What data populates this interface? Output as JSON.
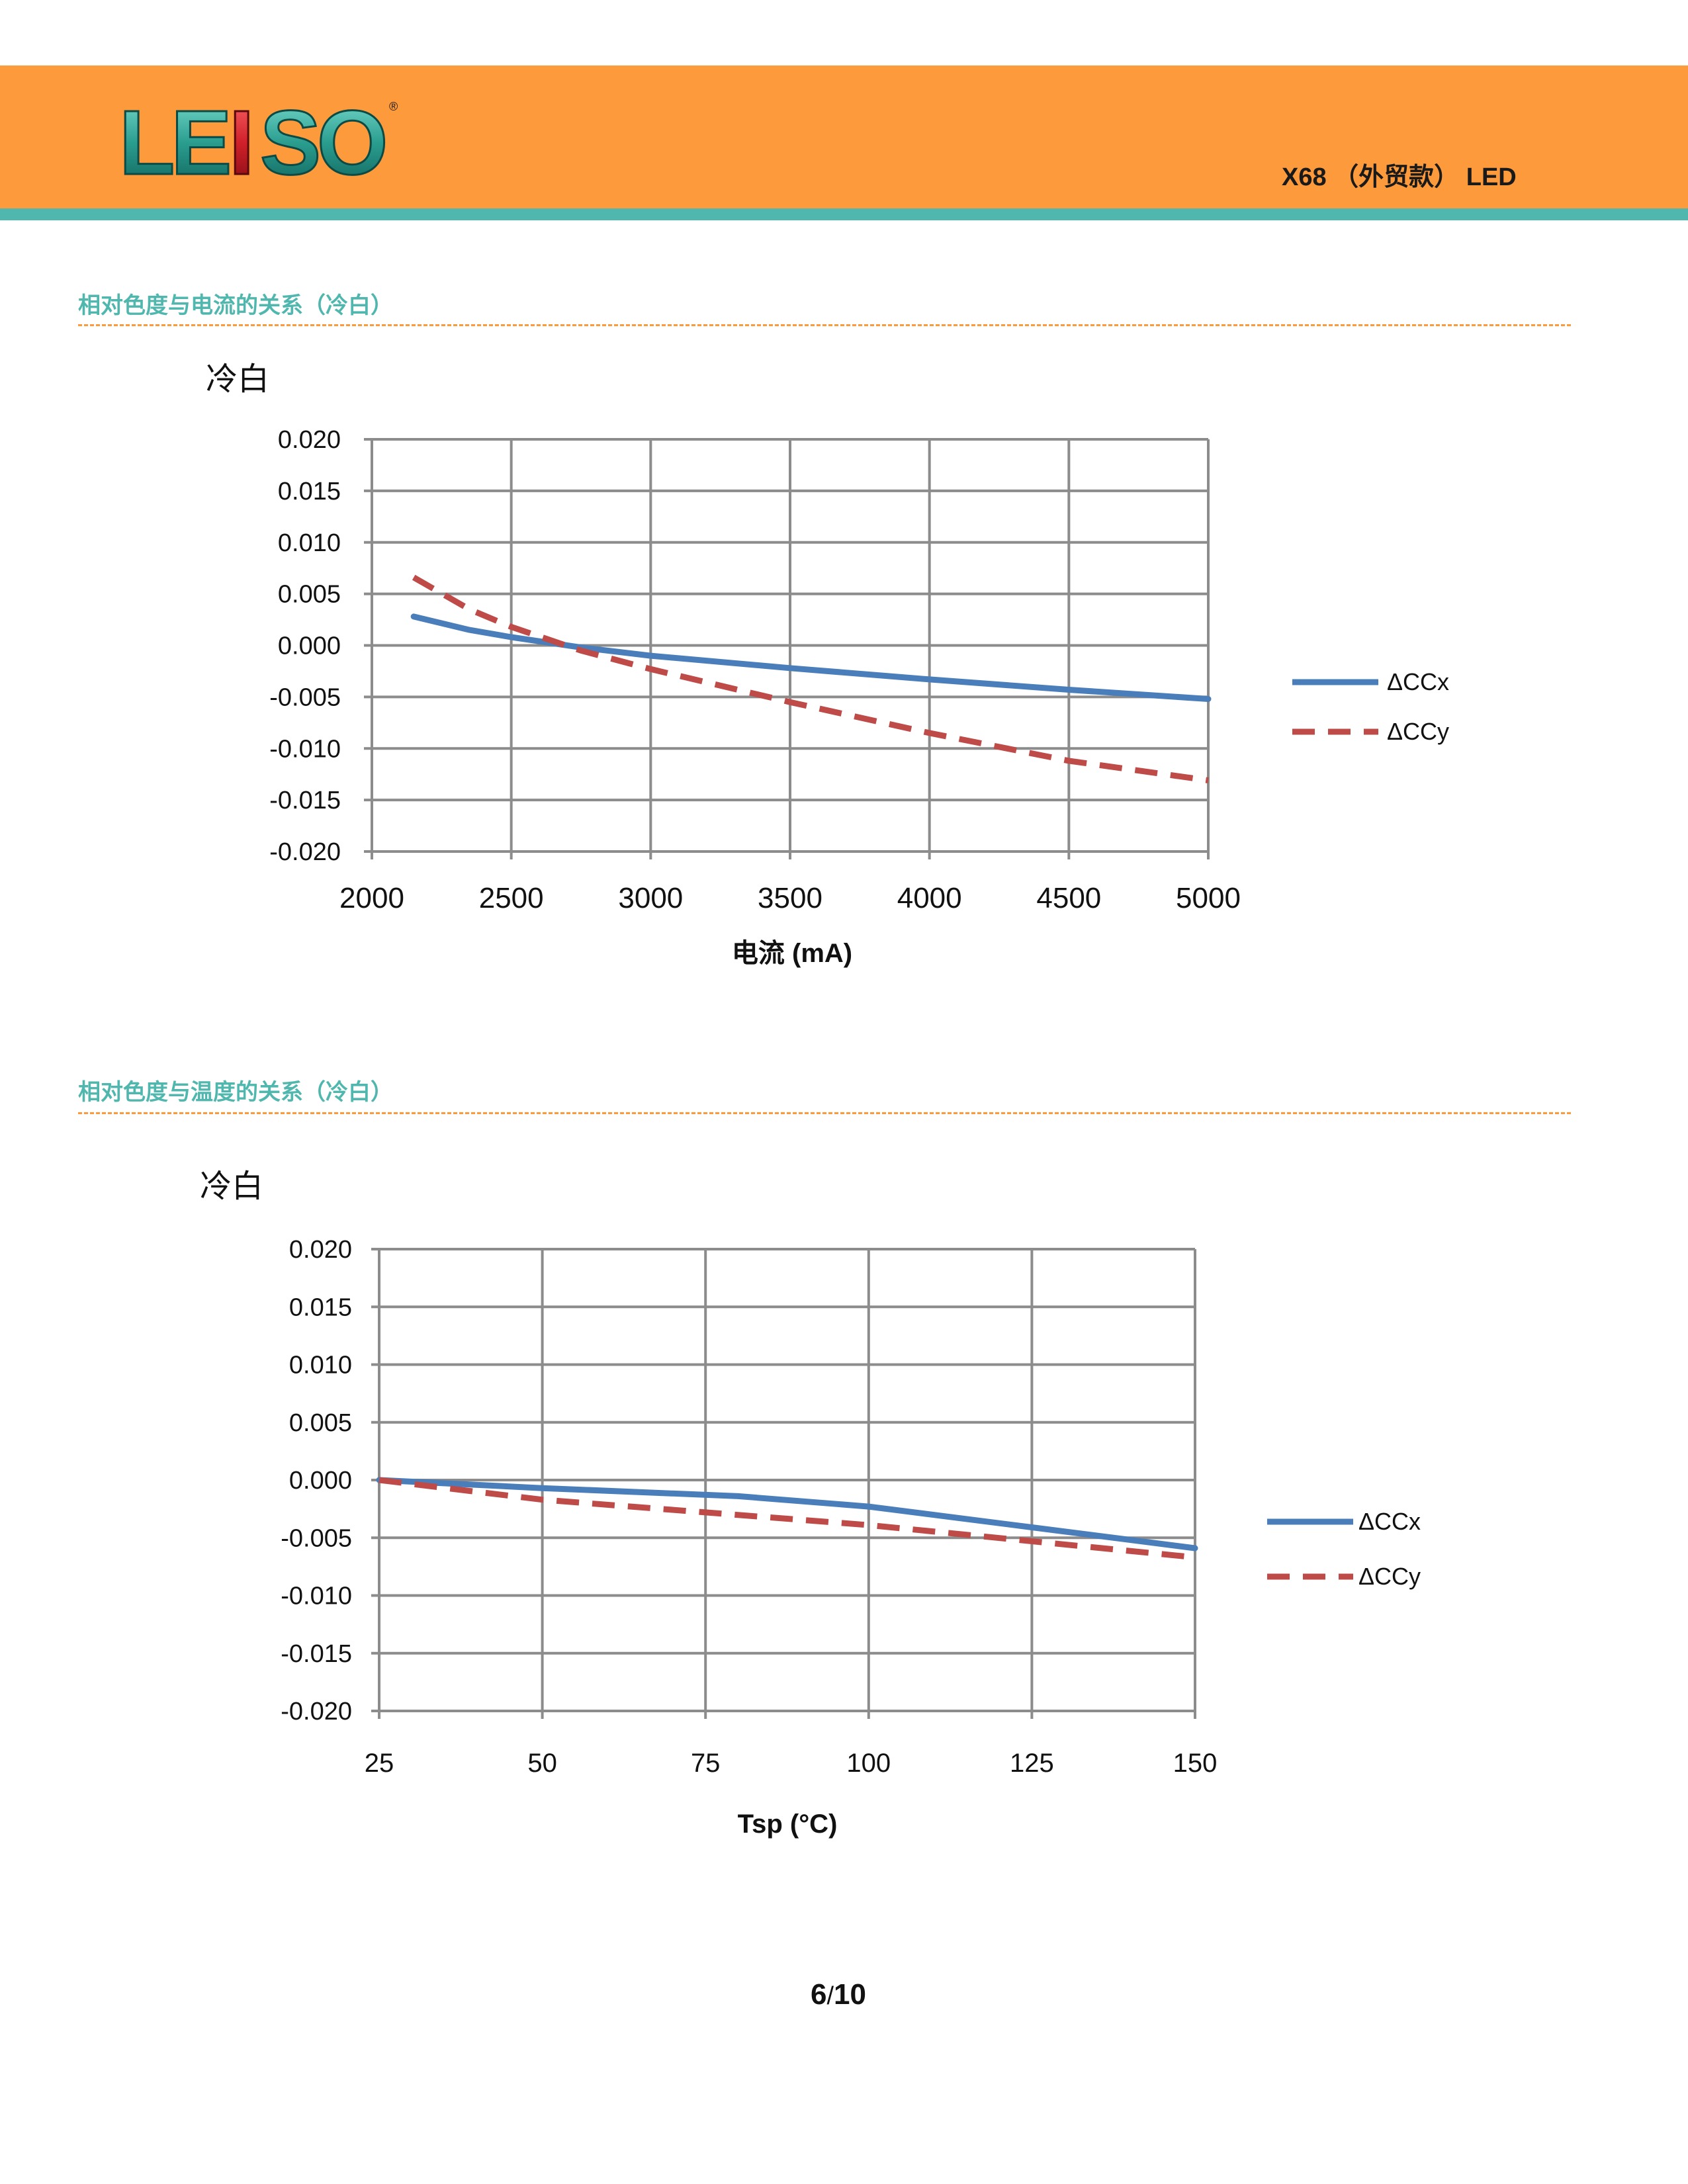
{
  "header": {
    "brand": "LEISO",
    "registered_mark": "®",
    "doc_title": "X68 （外贸款） LED"
  },
  "sections": [
    {
      "title": "相对色度与电流的关系（冷白）"
    },
    {
      "title": "相对色度与温度的关系（冷白）"
    }
  ],
  "colors": {
    "header_orange": "#fd9a3b",
    "header_teal": "#4fb7ad",
    "series_x": "#4a7ebb",
    "series_y": "#be4b48"
  },
  "chart_data": [
    {
      "type": "line",
      "title": "冷白",
      "xlabel": "电流 (mA)",
      "ylabel": "",
      "xlim": [
        2000,
        5000
      ],
      "ylim": [
        -0.02,
        0.02
      ],
      "x_ticks": [
        "2000",
        "2500",
        "3000",
        "3500",
        "4000",
        "4500",
        "5000"
      ],
      "y_ticks": [
        "0.020",
        "0.015",
        "0.010",
        "0.005",
        "0.000",
        "-0.005",
        "-0.010",
        "-0.015",
        "-0.020"
      ],
      "grid": true,
      "legend_position": "right",
      "series": [
        {
          "name": "ΔCCx",
          "style": "solid",
          "color": "#4a7ebb",
          "points": [
            [
              2150,
              0.0028
            ],
            [
              2350,
              0.0015
            ],
            [
              2500,
              0.0008
            ],
            [
              2750,
              -0.0002
            ],
            [
              3000,
              -0.001
            ],
            [
              3500,
              -0.0022
            ],
            [
              4000,
              -0.0033
            ],
            [
              4500,
              -0.0043
            ],
            [
              5000,
              -0.0052
            ]
          ]
        },
        {
          "name": "ΔCCy",
          "style": "dashed",
          "color": "#be4b48",
          "points": [
            [
              2150,
              0.0066
            ],
            [
              2350,
              0.0035
            ],
            [
              2500,
              0.0018
            ],
            [
              2750,
              -0.0005
            ],
            [
              3000,
              -0.0023
            ],
            [
              3500,
              -0.0055
            ],
            [
              4000,
              -0.0085
            ],
            [
              4500,
              -0.0112
            ],
            [
              5000,
              -0.0131
            ]
          ]
        }
      ]
    },
    {
      "type": "line",
      "title": "冷白",
      "xlabel": "Tsp (°C)",
      "ylabel": "",
      "xlim": [
        25,
        150
      ],
      "ylim": [
        -0.02,
        0.02
      ],
      "x_ticks": [
        "25",
        "50",
        "75",
        "100",
        "125",
        "150"
      ],
      "y_ticks": [
        "0.020",
        "0.015",
        "0.010",
        "0.005",
        "0.000",
        "-0.005",
        "-0.010",
        "-0.015",
        "-0.020"
      ],
      "grid": true,
      "legend_position": "right",
      "series": [
        {
          "name": "ΔCCx",
          "style": "solid",
          "color": "#4a7ebb",
          "points": [
            [
              25,
              0.0
            ],
            [
              50,
              -0.0007
            ],
            [
              80,
              -0.0014
            ],
            [
              100,
              -0.0023
            ],
            [
              125,
              -0.0041
            ],
            [
              150,
              -0.0059
            ]
          ]
        },
        {
          "name": "ΔCCy",
          "style": "dashed",
          "color": "#be4b48",
          "points": [
            [
              25,
              0.0
            ],
            [
              50,
              -0.0017
            ],
            [
              75,
              -0.0028
            ],
            [
              100,
              -0.0039
            ],
            [
              125,
              -0.0053
            ],
            [
              150,
              -0.0067
            ]
          ]
        }
      ]
    }
  ],
  "footer": {
    "page_current": "6",
    "page_separator": "/",
    "page_total": "10"
  }
}
